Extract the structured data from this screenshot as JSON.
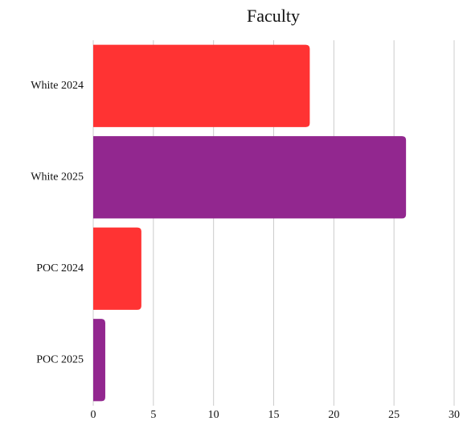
{
  "chart_data": {
    "type": "hbar",
    "title": "Faculty",
    "categories": [
      "White 2024",
      "White 2025",
      "POC 2024",
      "POC 2025"
    ],
    "values": [
      18,
      26,
      4,
      1
    ],
    "colors": [
      "#ff3333",
      "#92278f",
      "#ff3333",
      "#92278f"
    ],
    "xlim": [
      0,
      30
    ],
    "xticks": [
      0,
      5,
      10,
      15,
      20,
      25,
      30
    ],
    "grid": true
  }
}
